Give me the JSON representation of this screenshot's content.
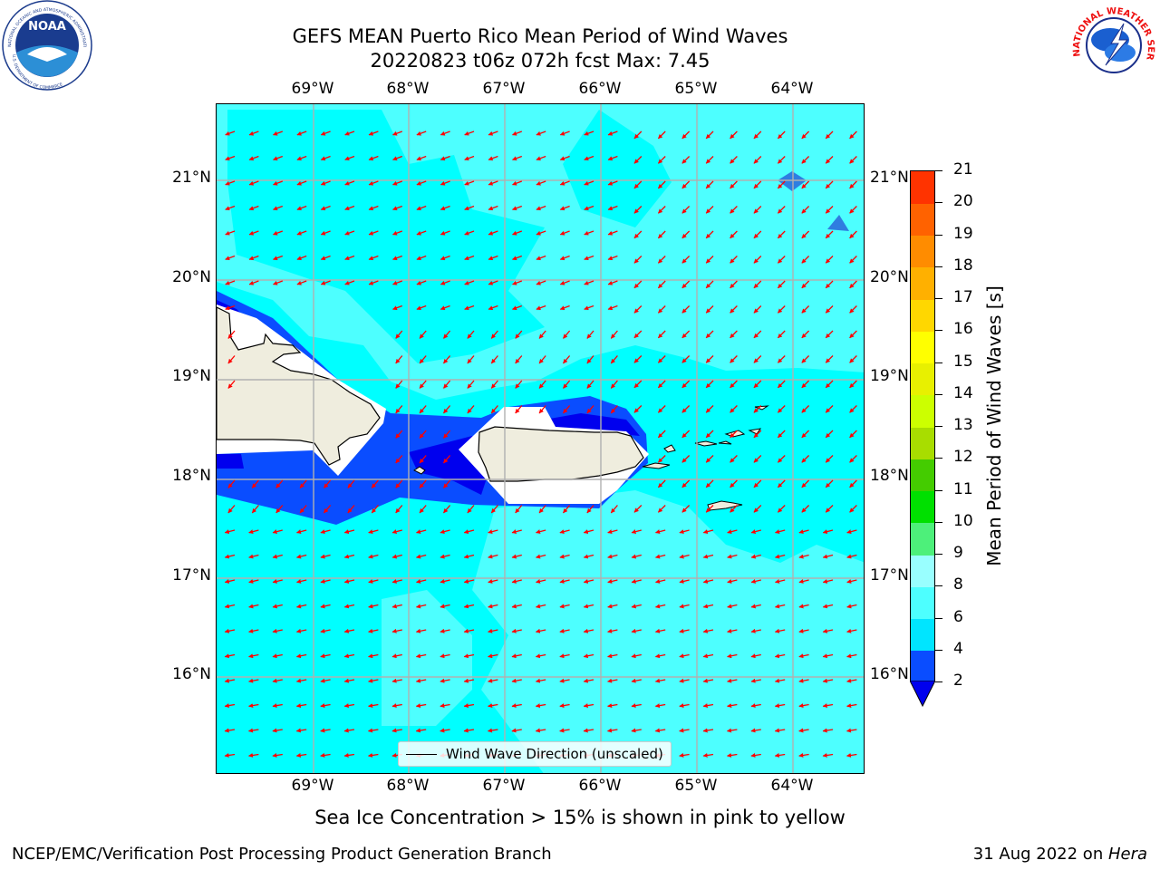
{
  "header": {
    "title_line1": "GEFS MEAN Puerto Rico Mean Period of Wind Waves",
    "title_line2": "20220823 t06z 072h fcst   Max: 7.45"
  },
  "logos": {
    "noaa_text": "NOAA",
    "noaa_ring_text": "NATIONAL OCEANIC AND ATMOSPHERIC ADMINISTRATION",
    "noaa_ring_text_bottom": "U.S. DEPARTMENT OF COMMERCE",
    "nws_ring_text": "NATIONAL WEATHER SERVICE"
  },
  "map": {
    "lon_labels": [
      "69°W",
      "68°W",
      "67°W",
      "66°W",
      "65°W",
      "64°W"
    ],
    "lat_labels": [
      "21°N",
      "20°N",
      "19°N",
      "18°N",
      "17°N",
      "16°N"
    ],
    "ocean_color": "#00ffff",
    "land_color": "#efedde",
    "arrow_color": "#ff0000",
    "gridlines": true
  },
  "colorbar": {
    "title": "Mean Period of Wind Waves [s]",
    "tick_labels": [
      "2",
      "4",
      "6",
      "8",
      "9",
      "10",
      "11",
      "12",
      "13",
      "14",
      "15",
      "16",
      "17",
      "18",
      "19",
      "20",
      "21"
    ],
    "colors": [
      "#0a4dff",
      "#00e5ff",
      "#4dffff",
      "#99ffff",
      "#4df07a",
      "#00e000",
      "#44cc00",
      "#a8dd00",
      "#ccff00",
      "#e8f000",
      "#ffff00",
      "#ffd700",
      "#ffb000",
      "#ff8c00",
      "#ff6200",
      "#ff3300"
    ],
    "under_color": "#0000ee"
  },
  "legend": {
    "label": "Wind Wave Direction (unscaled)"
  },
  "subcaption": "Sea Ice Concentration > 15% is shown in pink to yellow",
  "footer": {
    "left": "NCEP/EMC/Verification Post Processing Product Generation Branch",
    "right_prefix": "31 Aug 2022 on ",
    "right_host": "Hera"
  }
}
